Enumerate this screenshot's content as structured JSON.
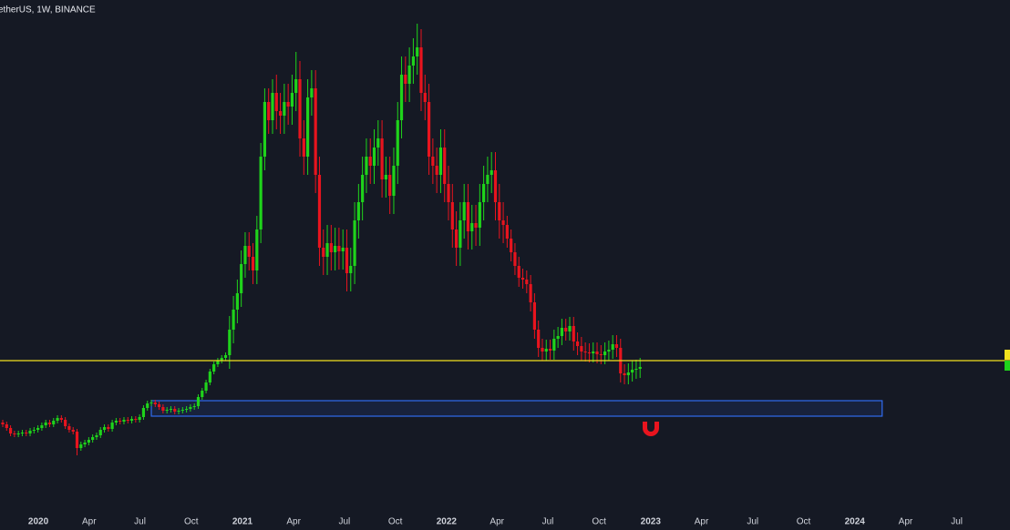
{
  "chart_data": {
    "type": "candlestick",
    "title": "etherUS, 1W, BINANCE",
    "up_color": "#1fd31b",
    "down_color": "#e8141e",
    "xlim": [
      -0.7,
      257.6
    ],
    "xticks": [
      {
        "value": 9.1,
        "label": "2020"
      },
      {
        "value": 22.1,
        "label": "Apr"
      },
      {
        "value": 35.1,
        "label": "Jul"
      },
      {
        "value": 48.2,
        "label": "Oct"
      },
      {
        "value": 61.3,
        "label": "2021"
      },
      {
        "value": 74.4,
        "label": "Apr"
      },
      {
        "value": 87.4,
        "label": "Jul"
      },
      {
        "value": 100.4,
        "label": "Oct"
      },
      {
        "value": 113.5,
        "label": "2022"
      },
      {
        "value": 126.4,
        "label": "Apr"
      },
      {
        "value": 139.4,
        "label": "Jul"
      },
      {
        "value": 152.5,
        "label": "Oct"
      },
      {
        "value": 165.7,
        "label": "2023"
      },
      {
        "value": 178.7,
        "label": "Apr"
      },
      {
        "value": 191.8,
        "label": "Jul"
      },
      {
        "value": 204.8,
        "label": "Oct"
      },
      {
        "value": 217.9,
        "label": "2024"
      },
      {
        "value": 230.9,
        "label": "Apr"
      },
      {
        "value": 244.0,
        "label": "Jul"
      }
    ],
    "ylim": [
      0,
      58.2
    ],
    "open": [
      11.8,
      11.6,
      11.2,
      10.6,
      10.5,
      10.6,
      10.7,
      10.6,
      10.9,
      11.0,
      11.2,
      11.5,
      11.8,
      11.6,
      12.0,
      12.3,
      12.1,
      11.4,
      11.0,
      10.8,
      9.0,
      9.4,
      9.6,
      9.9,
      10.2,
      10.4,
      11.0,
      11.3,
      11.1,
      11.8,
      12.0,
      11.9,
      12.1,
      12.0,
      12.2,
      12.1,
      12.4,
      13.4,
      13.9,
      14.0,
      13.8,
      13.5,
      13.1,
      13.2,
      13.3,
      13.0,
      13.1,
      13.2,
      13.3,
      13.5,
      13.6,
      14.6,
      15.3,
      16.2,
      17.4,
      18.2,
      18.6,
      18.9,
      19.2,
      22.0,
      24.2,
      26.0,
      29.2,
      31.2,
      30.0,
      28.5,
      33.0,
      41.0,
      47.0,
      45.0,
      48.0,
      46.0,
      45.5,
      47.0,
      46.5,
      48.0,
      49.5,
      43.0,
      41.0,
      47.5,
      48.5,
      39.0,
      31.0,
      30.0,
      31.5,
      30.5,
      31.2,
      30.6,
      31.0,
      28.2,
      29.0,
      34.0,
      36.0,
      39.0,
      41.0,
      40.0,
      42.0,
      43.0,
      38.5,
      39.0,
      36.7,
      40.0,
      45.0,
      50.0,
      49.0,
      51.0,
      52.0,
      53.0,
      48.0,
      47.0,
      41.0,
      40.0,
      39.0,
      42.0,
      38.0,
      36.0,
      33.0,
      31.0,
      34.0,
      36.0,
      32.8,
      33.7,
      33.2,
      36.0,
      38.0,
      39.0,
      39.5,
      36.0,
      34.0,
      33.5,
      32.0,
      30.5,
      29.0,
      27.7,
      27.5,
      27.0,
      25.0,
      22.0,
      20.0,
      19.6,
      19.9,
      19.7,
      21.0,
      21.3,
      22.2,
      21.8,
      22.4,
      20.7,
      20.2,
      19.6,
      19.5,
      19.4,
      19.6,
      19.3,
      19.2,
      19.6,
      19.8,
      20.4,
      20.0,
      17.2,
      17.0,
      17.3,
      17.6,
      17.7
    ],
    "high": [
      12.1,
      11.9,
      11.5,
      10.9,
      10.9,
      11.0,
      11.0,
      11.2,
      11.3,
      11.5,
      11.8,
      12.1,
      12.1,
      12.3,
      12.6,
      12.6,
      12.4,
      11.7,
      11.3,
      11.1,
      9.7,
      9.9,
      10.2,
      10.5,
      10.7,
      11.3,
      11.6,
      11.6,
      12.1,
      12.3,
      12.3,
      12.4,
      12.4,
      12.5,
      12.5,
      12.7,
      13.7,
      14.2,
      14.3,
      14.3,
      14.1,
      13.8,
      13.5,
      13.6,
      13.6,
      13.4,
      13.5,
      13.6,
      13.8,
      13.9,
      14.9,
      15.6,
      16.5,
      17.7,
      18.5,
      18.9,
      19.2,
      19.5,
      23.5,
      25.7,
      27.5,
      30.7,
      32.7,
      32.7,
      31.5,
      34.5,
      42.5,
      48.5,
      48.5,
      49.5,
      50,
      48,
      49,
      49,
      50,
      52.5,
      51.5,
      45,
      49.5,
      50.5,
      50.5,
      41,
      33,
      33.5,
      33.5,
      33.2,
      33.2,
      33,
      33,
      31,
      36,
      38,
      41,
      43,
      43,
      44,
      45,
      45,
      41,
      41,
      42,
      47,
      52,
      52,
      53,
      54,
      55.6,
      55,
      50,
      49,
      43,
      42,
      44,
      44,
      40,
      38,
      35,
      36,
      38,
      38,
      35.7,
      35.7,
      38,
      40,
      41,
      41.5,
      41.5,
      38,
      36,
      34.5,
      33,
      31.5,
      30,
      28.7,
      28.5,
      28,
      26,
      23,
      21,
      20.9,
      20.9,
      22,
      22.3,
      23.2,
      23.2,
      23.4,
      23.4,
      21.7,
      21.2,
      20.6,
      20.5,
      20.6,
      20.6,
      20.3,
      20.6,
      20.8,
      21.4,
      21.4,
      21,
      18.2,
      18.3,
      18.6,
      18.7,
      18.9
    ],
    "low": [
      11.3,
      10.9,
      10.3,
      10.2,
      10.2,
      10.3,
      10.3,
      10.3,
      10.6,
      10.7,
      10.9,
      11.2,
      11.3,
      11.3,
      11.7,
      11.8,
      11.1,
      10.7,
      10.5,
      8.2,
      8.7,
      9.1,
      9.3,
      9.6,
      9.9,
      10.1,
      10.7,
      10.8,
      10.8,
      11.5,
      11.6,
      11.6,
      11.7,
      11.7,
      11.8,
      11.8,
      12.1,
      13.1,
      13.6,
      13.5,
      13.2,
      12.8,
      12.8,
      12.9,
      12.7,
      12.7,
      12.8,
      12.9,
      13.0,
      13.2,
      13.3,
      14.3,
      15.0,
      15.9,
      17.1,
      17.9,
      18.3,
      18.6,
      17.7,
      20.5,
      22.7,
      24.5,
      27.7,
      28.5,
      27.0,
      27.0,
      31.5,
      39.5,
      43.5,
      43.5,
      44,
      43.5,
      43.5,
      44.5,
      44.5,
      46,
      41,
      39,
      39,
      45.5,
      37,
      29,
      28,
      28,
      28.5,
      28.5,
      28.6,
      28.6,
      26.2,
      26.2,
      27,
      32,
      34,
      37,
      38,
      38,
      40,
      36.5,
      36.5,
      34.7,
      34.7,
      38,
      43,
      47,
      47,
      49,
      50,
      46,
      45,
      39,
      38,
      37,
      37,
      36,
      34,
      31,
      29,
      29,
      32,
      30.8,
      30.8,
      31.2,
      31.2,
      34,
      36,
      37,
      34,
      32,
      31.5,
      31,
      29.5,
      28,
      26.7,
      26.5,
      26,
      24,
      21,
      19,
      18.6,
      18.6,
      18.7,
      18.7,
      20,
      20.3,
      20.8,
      20.8,
      19.7,
      19.2,
      18.6,
      18.5,
      18.4,
      18.4,
      18.3,
      18.2,
      18.2,
      18.6,
      18.8,
      19.0,
      16.2,
      16,
      16,
      16.3,
      16.6,
      16.7
    ],
    "close": [
      11.6,
      11.2,
      10.6,
      10.5,
      10.6,
      10.7,
      10.6,
      10.9,
      11.0,
      11.2,
      11.5,
      11.8,
      11.6,
      12.0,
      12.3,
      12.1,
      11.4,
      11.0,
      10.8,
      9.0,
      9.4,
      9.6,
      9.9,
      10.2,
      10.4,
      11.0,
      11.3,
      11.1,
      11.8,
      12.0,
      11.9,
      12.1,
      12.0,
      12.2,
      12.1,
      12.4,
      13.4,
      13.9,
      14.0,
      13.8,
      13.5,
      13.1,
      13.2,
      13.3,
      13.0,
      13.1,
      13.2,
      13.3,
      13.5,
      13.6,
      14.6,
      15.3,
      16.2,
      17.4,
      18.2,
      18.6,
      18.9,
      19.2,
      22.0,
      24.2,
      26.0,
      29.2,
      31.2,
      30.0,
      28.5,
      33.0,
      41.0,
      47.0,
      45.0,
      48.0,
      46.0,
      45.5,
      47.0,
      46.5,
      48.0,
      49.5,
      43.0,
      41.0,
      47.5,
      48.5,
      39.0,
      31.0,
      30.0,
      31.5,
      30.5,
      31.2,
      30.6,
      31.0,
      28.2,
      29.0,
      34.0,
      36.0,
      39.0,
      41.0,
      40.0,
      42.0,
      43.0,
      38.5,
      39.0,
      36.7,
      40.0,
      45.0,
      50.0,
      49.0,
      51.0,
      52.0,
      53.0,
      48.0,
      47.0,
      41.0,
      40.0,
      39.0,
      42.0,
      38.0,
      36.0,
      33.0,
      31.0,
      34.0,
      36.0,
      32.8,
      33.7,
      33.2,
      36.0,
      38.0,
      39.0,
      39.5,
      36.0,
      34.0,
      33.5,
      32.0,
      30.5,
      29.0,
      27.7,
      27.5,
      27.0,
      25.0,
      22.0,
      20.0,
      19.6,
      19.9,
      19.7,
      21.0,
      21.3,
      22.2,
      21.8,
      22.4,
      20.7,
      20.2,
      19.6,
      19.5,
      19.4,
      19.6,
      19.3,
      19.2,
      19.6,
      19.8,
      20.4,
      20.0,
      17.2,
      17.0,
      17.3,
      17.6,
      17.7,
      17.9
    ],
    "levels": [
      {
        "value": 18.6,
        "color": "#f2e21e"
      }
    ],
    "zones": [
      {
        "x": [
          38.0,
          224.9
        ],
        "y": [
          12.5,
          14.2
        ],
        "color": "#2f6bf0"
      }
    ]
  }
}
